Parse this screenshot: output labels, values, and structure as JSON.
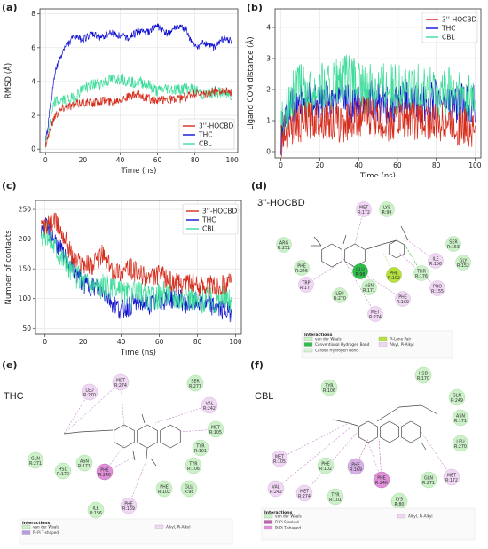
{
  "panels": {
    "a": {
      "label": "(a)"
    },
    "b": {
      "label": "(b)"
    },
    "c": {
      "label": "(c)"
    },
    "d": {
      "label": "(d)",
      "title": "3''-HOCBD"
    },
    "e": {
      "label": "(e)",
      "title": "THC"
    },
    "f": {
      "label": "(f)",
      "title": "CBL"
    }
  },
  "chart_data": [
    {
      "id": "a",
      "type": "line",
      "xlabel": "Time (ns)",
      "ylabel": "RMSD (Å)",
      "xlim": [
        -3,
        103
      ],
      "ylim": [
        -0.2,
        8.3
      ],
      "xticks": [
        0,
        20,
        40,
        60,
        80,
        100
      ],
      "yticks": [
        0,
        2,
        4,
        6,
        8
      ],
      "grid": true,
      "legend": "lower-right",
      "series": [
        {
          "name": "3''-HOCBD",
          "color": "#d62a1a",
          "x": [
            0,
            5,
            10,
            15,
            20,
            25,
            30,
            35,
            40,
            45,
            50,
            55,
            60,
            65,
            70,
            75,
            80,
            85,
            90,
            95,
            100
          ],
          "y": [
            0.3,
            2.0,
            2.5,
            2.6,
            2.8,
            2.7,
            2.9,
            2.8,
            3.0,
            3.1,
            3.2,
            3.0,
            2.8,
            3.0,
            2.9,
            3.1,
            3.3,
            3.2,
            3.4,
            3.5,
            3.3
          ]
        },
        {
          "name": "THC",
          "color": "#1010d0",
          "x": [
            0,
            5,
            10,
            15,
            20,
            25,
            30,
            35,
            40,
            45,
            50,
            55,
            60,
            65,
            70,
            75,
            80,
            85,
            90,
            95,
            100
          ],
          "y": [
            0.3,
            4.5,
            6.0,
            6.6,
            6.5,
            6.8,
            6.6,
            6.9,
            6.7,
            6.6,
            7.0,
            6.9,
            7.3,
            6.8,
            7.2,
            7.1,
            6.0,
            6.3,
            6.0,
            6.5,
            6.4
          ]
        },
        {
          "name": "CBL",
          "color": "#3ddc9a",
          "x": [
            0,
            5,
            10,
            15,
            20,
            25,
            30,
            35,
            40,
            45,
            50,
            55,
            60,
            65,
            70,
            75,
            80,
            85,
            90,
            95,
            100
          ],
          "y": [
            0.3,
            2.8,
            2.9,
            3.0,
            3.6,
            3.8,
            3.9,
            4.1,
            4.2,
            4.0,
            4.0,
            3.8,
            3.4,
            3.6,
            3.5,
            3.6,
            3.5,
            3.2,
            3.4,
            3.3,
            3.2
          ]
        }
      ]
    },
    {
      "id": "b",
      "type": "line",
      "xlabel": "Time (ns)",
      "ylabel": "Ligand COM distance (Å)",
      "xlim": [
        -3,
        103
      ],
      "ylim": [
        -0.2,
        4.6
      ],
      "xticks": [
        0,
        20,
        40,
        60,
        80,
        100
      ],
      "yticks": [
        0,
        1,
        2,
        3,
        4
      ],
      "grid": true,
      "legend": "upper-right",
      "series": [
        {
          "name": "3''-HOCBD",
          "color": "#d62a1a",
          "x": [
            0,
            5,
            10,
            15,
            20,
            25,
            30,
            35,
            40,
            45,
            50,
            55,
            60,
            65,
            70,
            75,
            80,
            85,
            90,
            95,
            100
          ],
          "y": [
            0.4,
            0.8,
            0.9,
            1.0,
            1.1,
            1.0,
            0.9,
            1.0,
            1.1,
            1.2,
            1.0,
            0.9,
            1.0,
            1.1,
            1.0,
            1.0,
            0.9,
            1.0,
            0.8,
            0.8,
            0.7
          ]
        },
        {
          "name": "THC",
          "color": "#1010d0",
          "x": [
            0,
            5,
            10,
            15,
            20,
            25,
            30,
            35,
            40,
            45,
            50,
            55,
            60,
            65,
            70,
            75,
            80,
            85,
            90,
            95,
            100
          ],
          "y": [
            0.5,
            1.4,
            1.5,
            1.6,
            1.5,
            1.7,
            1.8,
            1.6,
            1.5,
            1.7,
            1.6,
            1.5,
            1.6,
            1.7,
            1.5,
            1.6,
            1.7,
            1.6,
            1.5,
            1.6,
            1.5
          ]
        },
        {
          "name": "CBL",
          "color": "#3ddc9a",
          "x": [
            0,
            5,
            10,
            15,
            20,
            25,
            30,
            35,
            40,
            45,
            50,
            55,
            60,
            65,
            70,
            75,
            80,
            85,
            90,
            95,
            100
          ],
          "y": [
            1.0,
            1.8,
            2.0,
            1.9,
            2.1,
            2.0,
            2.2,
            2.3,
            2.1,
            2.0,
            2.2,
            2.1,
            2.0,
            1.9,
            2.0,
            2.1,
            1.9,
            2.0,
            1.8,
            1.7,
            1.6
          ]
        }
      ]
    },
    {
      "id": "c",
      "type": "line",
      "xlabel": "Time (ns)",
      "ylabel": "Number of contacts",
      "xlim": [
        -5,
        103
      ],
      "ylim": [
        40,
        265
      ],
      "xticks": [
        0,
        20,
        40,
        60,
        80,
        100
      ],
      "yticks": [
        50,
        100,
        150,
        200,
        250
      ],
      "grid": true,
      "legend": "upper-right",
      "series": [
        {
          "name": "3''-HOCBD",
          "color": "#d62a1a",
          "x": [
            0,
            5,
            10,
            15,
            20,
            25,
            30,
            35,
            40,
            45,
            50,
            55,
            60,
            65,
            70,
            75,
            80,
            85,
            90,
            95,
            100
          ],
          "y": [
            220,
            230,
            205,
            165,
            160,
            155,
            175,
            150,
            145,
            150,
            140,
            135,
            140,
            130,
            125,
            130,
            120,
            125,
            120,
            125,
            130
          ]
        },
        {
          "name": "THC",
          "color": "#1010d0",
          "x": [
            0,
            5,
            10,
            15,
            20,
            25,
            30,
            35,
            40,
            45,
            50,
            55,
            60,
            65,
            70,
            75,
            80,
            85,
            90,
            95,
            100
          ],
          "y": [
            220,
            200,
            170,
            150,
            125,
            120,
            115,
            95,
            80,
            90,
            95,
            90,
            95,
            100,
            100,
            90,
            95,
            90,
            85,
            80,
            75
          ]
        },
        {
          "name": "CBL",
          "color": "#3ddc9a",
          "x": [
            0,
            5,
            10,
            15,
            20,
            25,
            30,
            35,
            40,
            45,
            50,
            55,
            60,
            65,
            70,
            75,
            80,
            85,
            90,
            95,
            100
          ],
          "y": [
            210,
            190,
            165,
            140,
            130,
            125,
            120,
            115,
            110,
            105,
            110,
            100,
            105,
            110,
            100,
            105,
            95,
            100,
            95,
            100,
            95
          ]
        }
      ]
    }
  ],
  "diagrams": {
    "d": {
      "residues": [
        {
          "name": "MET",
          "num": "R:172",
          "color": "#f0d8f4",
          "border": "#c9a3cf"
        },
        {
          "name": "LYS",
          "num": "R:99",
          "color": "#ccf0c8",
          "border": "#9bd497"
        },
        {
          "name": "SER",
          "num": "R:153",
          "color": "#ccf0c8",
          "border": "#9bd497"
        },
        {
          "name": "ARG",
          "num": "R:251",
          "color": "#ccf0c8",
          "border": "#9bd497"
        },
        {
          "name": "ILE",
          "num": "R:156",
          "color": "#f0d8f4",
          "border": "#c9a3cf"
        },
        {
          "name": "GLY",
          "num": "R:152",
          "color": "#ccf0c8",
          "border": "#9bd497"
        },
        {
          "name": "THR",
          "num": "R:176",
          "color": "#ccf0c8",
          "border": "#9bd497"
        },
        {
          "name": "PHE",
          "num": "R:246",
          "color": "#ccf0c8",
          "border": "#9bd497"
        },
        {
          "name": "GLU",
          "num": "R:98",
          "color": "#2ebf4a",
          "border": "#1d8b34"
        },
        {
          "name": "PHE",
          "num": "R:102",
          "color": "#b6e23c",
          "border": "#86ad1c"
        },
        {
          "name": "PRO",
          "num": "R:155",
          "color": "#f0d8f4",
          "border": "#c9a3cf"
        },
        {
          "name": "TRP",
          "num": "R:177",
          "color": "#f0d8f4",
          "border": "#c9a3cf"
        },
        {
          "name": "ASN",
          "num": "R:171",
          "color": "#ccf0c8",
          "border": "#9bd497"
        },
        {
          "name": "LEU",
          "num": "R:270",
          "color": "#ccf0c8",
          "border": "#9bd497"
        },
        {
          "name": "PHE",
          "num": "R:169",
          "color": "#f0d8f4",
          "border": "#c9a3cf"
        },
        {
          "name": "MET",
          "num": "R:274",
          "color": "#f0d8f4",
          "border": "#c9a3cf"
        }
      ],
      "legend_title": "Interactions",
      "legend": [
        {
          "label": "van der Waals",
          "color": "#ccf0c8"
        },
        {
          "label": "Conventional Hydrogen Bond",
          "color": "#2ebf4a"
        },
        {
          "label": "Carbon Hydrogen Bond",
          "color": "#d6f5d6"
        },
        {
          "label": "Pi-Lone Pair",
          "color": "#b6e23c"
        },
        {
          "label": "Alkyl, Pi-Alkyl",
          "color": "#f0d8f4"
        }
      ]
    },
    "e": {
      "residues": [
        {
          "name": "LEU",
          "num": "R:270",
          "color": "#f0d8f4",
          "border": "#c9a3cf"
        },
        {
          "name": "MET",
          "num": "R:274",
          "color": "#f0d8f4",
          "border": "#c9a3cf"
        },
        {
          "name": "SER",
          "num": "R:277",
          "color": "#ccf0c8",
          "border": "#9bd497"
        },
        {
          "name": "VAL",
          "num": "R:242",
          "color": "#f0d8f4",
          "border": "#c9a3cf"
        },
        {
          "name": "MET",
          "num": "R:105",
          "color": "#ccf0c8",
          "border": "#9bd497"
        },
        {
          "name": "TYR",
          "num": "R:101",
          "color": "#ccf0c8",
          "border": "#9bd497"
        },
        {
          "name": "TYR",
          "num": "R:106",
          "color": "#ccf0c8",
          "border": "#9bd497"
        },
        {
          "name": "GLN",
          "num": "R:271",
          "color": "#ccf0c8",
          "border": "#9bd497"
        },
        {
          "name": "ASN",
          "num": "R:171",
          "color": "#ccf0c8",
          "border": "#9bd497"
        },
        {
          "name": "HSD",
          "num": "R:170",
          "color": "#ccf0c8",
          "border": "#9bd497"
        },
        {
          "name": "PHE",
          "num": "R:246",
          "color": "#e090d8",
          "border": "#b060a8"
        },
        {
          "name": "PHE",
          "num": "R:102",
          "color": "#ccf0c8",
          "border": "#9bd497"
        },
        {
          "name": "GLU",
          "num": "R:98",
          "color": "#ccf0c8",
          "border": "#9bd497"
        },
        {
          "name": "ILE",
          "num": "R:156",
          "color": "#ccf0c8",
          "border": "#9bd497"
        },
        {
          "name": "PHE",
          "num": "R:169",
          "color": "#f0d8f4",
          "border": "#c9a3cf"
        }
      ],
      "legend_title": "Interactions",
      "legend": [
        {
          "label": "van der Waals",
          "color": "#ccf0c8"
        },
        {
          "label": "Pi-Pi T-shaped",
          "color": "#b89ae0"
        },
        {
          "label": "Alkyl, Pi-Alkyl",
          "color": "#f0d8f4"
        }
      ]
    },
    "f": {
      "residues": [
        {
          "name": "HSD",
          "num": "R:170",
          "color": "#ccf0c8",
          "border": "#9bd497"
        },
        {
          "name": "TYR",
          "num": "R:106",
          "color": "#ccf0c8",
          "border": "#9bd497"
        },
        {
          "name": "GLN",
          "num": "R:249",
          "color": "#ccf0c8",
          "border": "#9bd497"
        },
        {
          "name": "ASN",
          "num": "R:171",
          "color": "#ccf0c8",
          "border": "#9bd497"
        },
        {
          "name": "LEU",
          "num": "R:270",
          "color": "#ccf0c8",
          "border": "#9bd497"
        },
        {
          "name": "MET",
          "num": "R:105",
          "color": "#f0d8f4",
          "border": "#c9a3cf"
        },
        {
          "name": "PHE",
          "num": "R:102",
          "color": "#ccf0c8",
          "border": "#9bd497"
        },
        {
          "name": "PHE",
          "num": "R:169",
          "color": "#d8b0e8",
          "border": "#a67cbd"
        },
        {
          "name": "VAL",
          "num": "R:242",
          "color": "#f0d8f4",
          "border": "#c9a3cf"
        },
        {
          "name": "MET",
          "num": "R:274",
          "color": "#f0d8f4",
          "border": "#c9a3cf"
        },
        {
          "name": "TYR",
          "num": "R:101",
          "color": "#ccf0c8",
          "border": "#9bd497"
        },
        {
          "name": "PHE",
          "num": "R:246",
          "color": "#e090d8",
          "border": "#b060a8"
        },
        {
          "name": "GLN",
          "num": "R:271",
          "color": "#ccf0c8",
          "border": "#9bd497"
        },
        {
          "name": "MET",
          "num": "R:172",
          "color": "#f0d8f4",
          "border": "#c9a3cf"
        },
        {
          "name": "LYS",
          "num": "R:80",
          "color": "#ccf0c8",
          "border": "#9bd497"
        }
      ],
      "legend_title": "Interactions",
      "legend": [
        {
          "label": "van der Waals",
          "color": "#ccf0c8"
        },
        {
          "label": "Pi-Pi Stacked",
          "color": "#c060b0"
        },
        {
          "label": "Pi-Pi T-shaped",
          "color": "#e090d8"
        },
        {
          "label": "Alkyl, Pi-Alkyl",
          "color": "#f0d8f4"
        }
      ]
    }
  }
}
